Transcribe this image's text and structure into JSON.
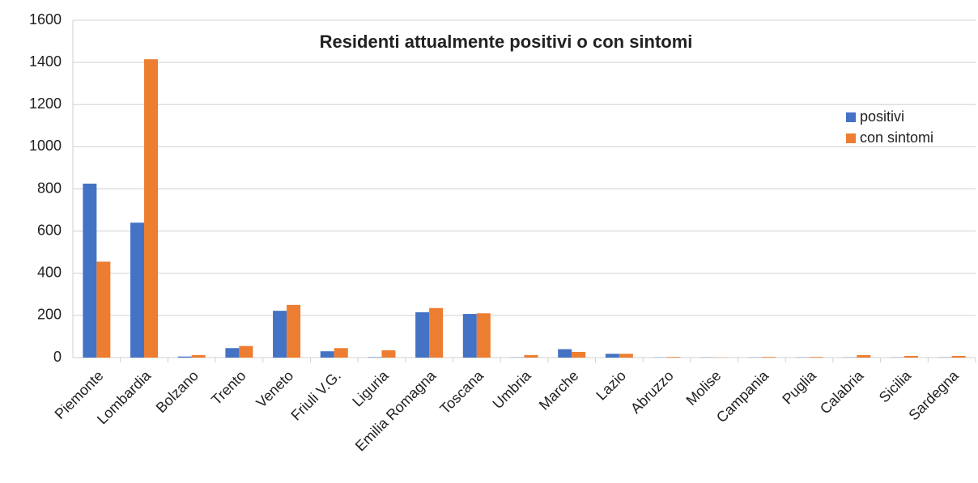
{
  "chart_data": {
    "type": "bar",
    "title": "Residenti attualmente positivi o con sintomi",
    "categories": [
      "Piemonte",
      "Lombardia",
      "Bolzano",
      "Trento",
      "Veneto",
      "Friuli V.G.",
      "Liguria",
      "Emilia Romagna",
      "Toscana",
      "Umbria",
      "Marche",
      "Lazio",
      "Abruzzo",
      "Molise",
      "Campania",
      "Puglia",
      "Calabria",
      "Sicilia",
      "Sardegna"
    ],
    "series": [
      {
        "name": "positivi",
        "color": "#4472c4",
        "values": [
          825,
          640,
          5,
          45,
          222,
          30,
          2,
          215,
          207,
          1,
          40,
          18,
          1,
          1,
          1,
          1,
          1,
          1,
          1
        ]
      },
      {
        "name": "con sintomi",
        "color": "#ed7d31",
        "values": [
          455,
          1415,
          12,
          55,
          250,
          45,
          35,
          235,
          210,
          12,
          27,
          18,
          3,
          1,
          3,
          3,
          12,
          8,
          8
        ]
      }
    ],
    "ylim": [
      0,
      1600
    ],
    "yticks": [
      0,
      200,
      400,
      600,
      800,
      1000,
      1200,
      1400,
      1600
    ],
    "grid": true,
    "legend": "right"
  }
}
